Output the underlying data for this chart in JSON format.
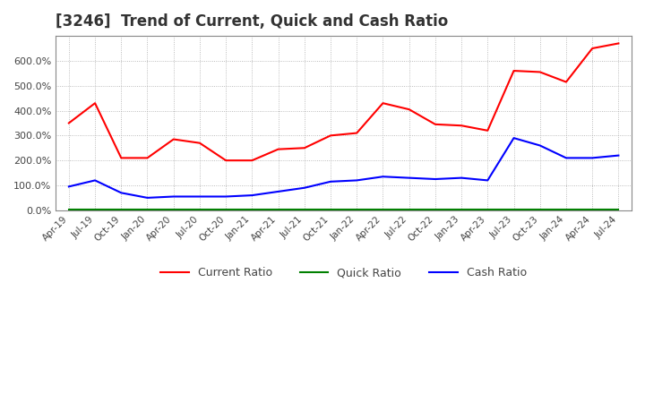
{
  "title": "[3246]  Trend of Current, Quick and Cash Ratio",
  "x_labels": [
    "Apr-19",
    "Jul-19",
    "Oct-19",
    "Jan-20",
    "Apr-20",
    "Jul-20",
    "Oct-20",
    "Jan-21",
    "Apr-21",
    "Jul-21",
    "Oct-21",
    "Jan-22",
    "Apr-22",
    "Jul-22",
    "Oct-22",
    "Jan-23",
    "Apr-23",
    "Jul-23",
    "Oct-23",
    "Jan-24",
    "Apr-24",
    "Jul-24"
  ],
  "current_ratio": [
    350,
    430,
    210,
    210,
    285,
    270,
    200,
    200,
    245,
    250,
    300,
    310,
    430,
    405,
    345,
    340,
    320,
    560,
    555,
    515,
    650,
    670
  ],
  "quick_ratio": [
    2,
    2,
    2,
    2,
    2,
    2,
    2,
    2,
    2,
    2,
    2,
    2,
    2,
    2,
    2,
    2,
    2,
    2,
    2,
    2,
    2,
    2
  ],
  "cash_ratio": [
    95,
    120,
    70,
    50,
    55,
    55,
    55,
    60,
    75,
    90,
    115,
    120,
    135,
    130,
    125,
    130,
    120,
    290,
    260,
    210,
    210,
    220
  ],
  "current_color": "#ff0000",
  "quick_color": "#008000",
  "cash_color": "#0000ff",
  "background_color": "#ffffff",
  "grid_color": "#aaaaaa",
  "ylim": [
    0,
    700
  ],
  "yticks": [
    0,
    100,
    200,
    300,
    400,
    500,
    600
  ],
  "ytick_labels": [
    "0.0%",
    "100.0%",
    "200.0%",
    "300.0%",
    "400.0%",
    "500.0%",
    "600.0%"
  ],
  "title_fontsize": 12,
  "legend_labels": [
    "Current Ratio",
    "Quick Ratio",
    "Cash Ratio"
  ]
}
